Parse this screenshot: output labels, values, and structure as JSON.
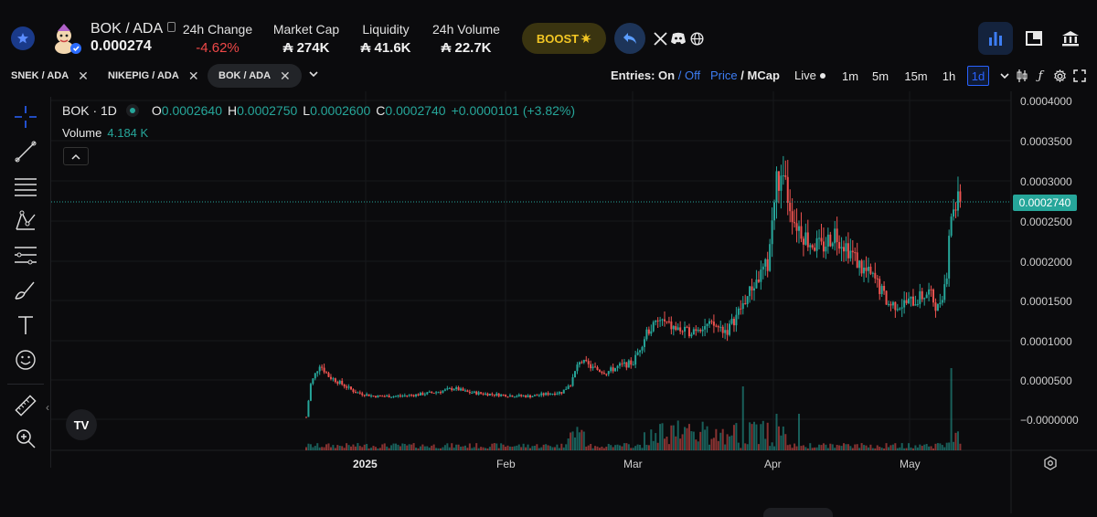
{
  "header": {
    "pair": "BOK / ADA",
    "price": "0.000274",
    "stats": [
      {
        "label": "24h Change",
        "value": "-4.62%"
      },
      {
        "label": "Market Cap",
        "value": "₳ 274K"
      },
      {
        "label": "Liquidity",
        "value": "₳ 41.6K"
      },
      {
        "label": "24h Volume",
        "value": "₳ 22.7K"
      }
    ],
    "boost_label": "BOOST",
    "colors": {
      "negative": "#f04848",
      "boost": "#f2c624",
      "accent": "#2962ff"
    }
  },
  "tabs": [
    {
      "label": "SNEK / ADA"
    },
    {
      "label": "NIKEPIG / ADA"
    },
    {
      "label": "BOK / ADA"
    }
  ],
  "toolbar": {
    "entries_label": "Entries:",
    "on": "On",
    "slash": "/",
    "off": "Off",
    "price": "Price",
    "mcap": "MCap",
    "live": "Live",
    "timeframes": [
      "1m",
      "5m",
      "15m",
      "1h",
      "1d"
    ],
    "active_timeframe": "1d"
  },
  "legend": {
    "symbol": "BOK · 1D",
    "o_key": "O",
    "o_val": "0.0002640",
    "h_key": "H",
    "h_val": "0.0002750",
    "l_key": "L",
    "l_val": "0.0002600",
    "c_key": "C",
    "c_val": "0.0002740",
    "change": "+0.0000101 (+3.82%)",
    "volume_label": "Volume",
    "volume_value": "4.184 K"
  },
  "chart_data": {
    "type": "candlestick",
    "y_ticks": [
      "0.0004000",
      "0.0003500",
      "0.0003000",
      "0.0002500",
      "0.0002000",
      "0.0001500",
      "0.0001000",
      "0.0000500",
      "−0.0000000"
    ],
    "x_ticks": [
      "2025",
      "Feb",
      "Mar",
      "Apr",
      "May"
    ],
    "last_price": "0.0002740",
    "up_color": "#26a69a",
    "down_color": "#ef5350"
  },
  "tv_logo": "TV"
}
